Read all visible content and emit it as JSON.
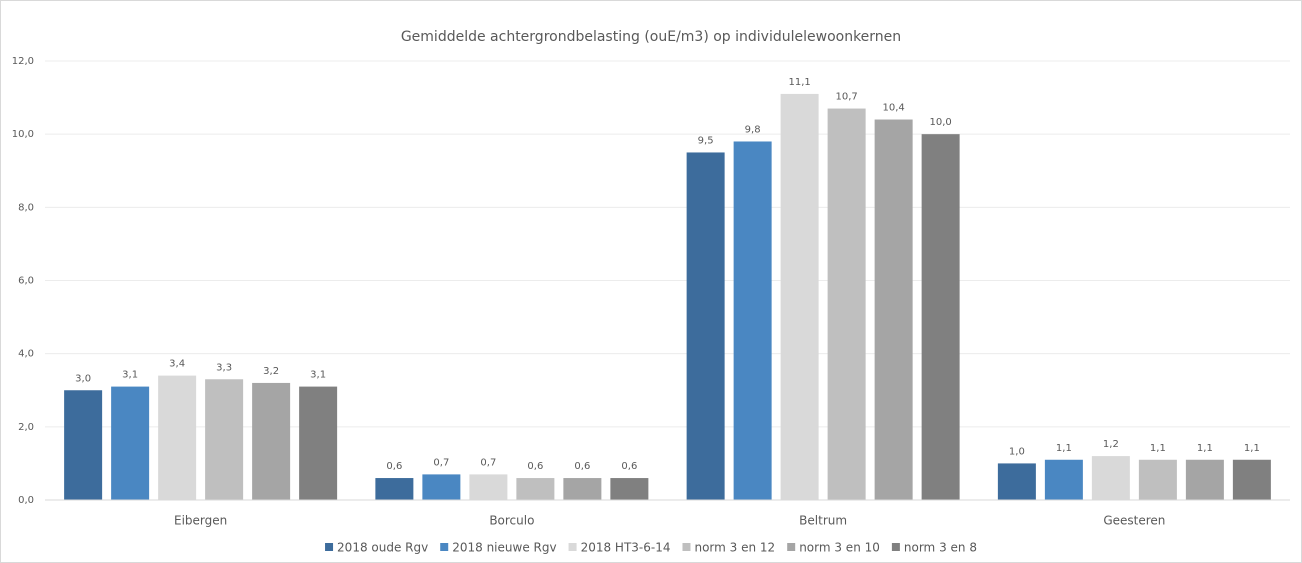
{
  "chart_data": {
    "type": "bar",
    "title": "Gemiddelde achtergrondbelasting (ouE/m3) op individulelewoonkernen",
    "categories": [
      "Eibergen",
      "Borculo",
      "Beltrum",
      "Geesteren"
    ],
    "series": [
      {
        "name": "2018 oude Rgv",
        "color": "#3d6c9c",
        "values": [
          3.0,
          0.6,
          9.5,
          1.0
        ],
        "value_labels": [
          "3,0",
          "0,6",
          "9,5",
          "1,0"
        ]
      },
      {
        "name": "2018 nieuwe Rgv",
        "color": "#4a87c2",
        "values": [
          3.1,
          0.7,
          9.8,
          1.1
        ],
        "value_labels": [
          "3,1",
          "0,7",
          "9,8",
          "1,1"
        ]
      },
      {
        "name": "2018 HT3-6-14",
        "color": "#d9d9d9",
        "values": [
          3.4,
          0.7,
          11.1,
          1.2
        ],
        "value_labels": [
          "3,4",
          "0,7",
          "11,1",
          "1,2"
        ]
      },
      {
        "name": "norm 3 en 12",
        "color": "#bfbfbf",
        "values": [
          3.3,
          0.6,
          10.7,
          1.1
        ],
        "value_labels": [
          "3,3",
          "0,6",
          "10,7",
          "1,1"
        ]
      },
      {
        "name": "norm 3 en 10",
        "color": "#a5a5a5",
        "values": [
          3.2,
          0.6,
          10.4,
          1.1
        ],
        "value_labels": [
          "3,2",
          "0,6",
          "10,4",
          "1,1"
        ]
      },
      {
        "name": "norm 3 en 8",
        "color": "#808080",
        "values": [
          3.1,
          0.6,
          10.0,
          1.1
        ],
        "value_labels": [
          "3,1",
          "0,6",
          "10,0",
          "1,1"
        ]
      }
    ],
    "ylim": [
      0,
      12
    ],
    "yticks": [
      {
        "value": 0,
        "label": "0,0"
      },
      {
        "value": 2,
        "label": "2,0"
      },
      {
        "value": 4,
        "label": "4,0"
      },
      {
        "value": 6,
        "label": "6,0"
      },
      {
        "value": 8,
        "label": "8,0"
      },
      {
        "value": 10,
        "label": "10,0"
      },
      {
        "value": 12,
        "label": "12,0"
      }
    ],
    "grid": true,
    "legend": "bottom"
  }
}
